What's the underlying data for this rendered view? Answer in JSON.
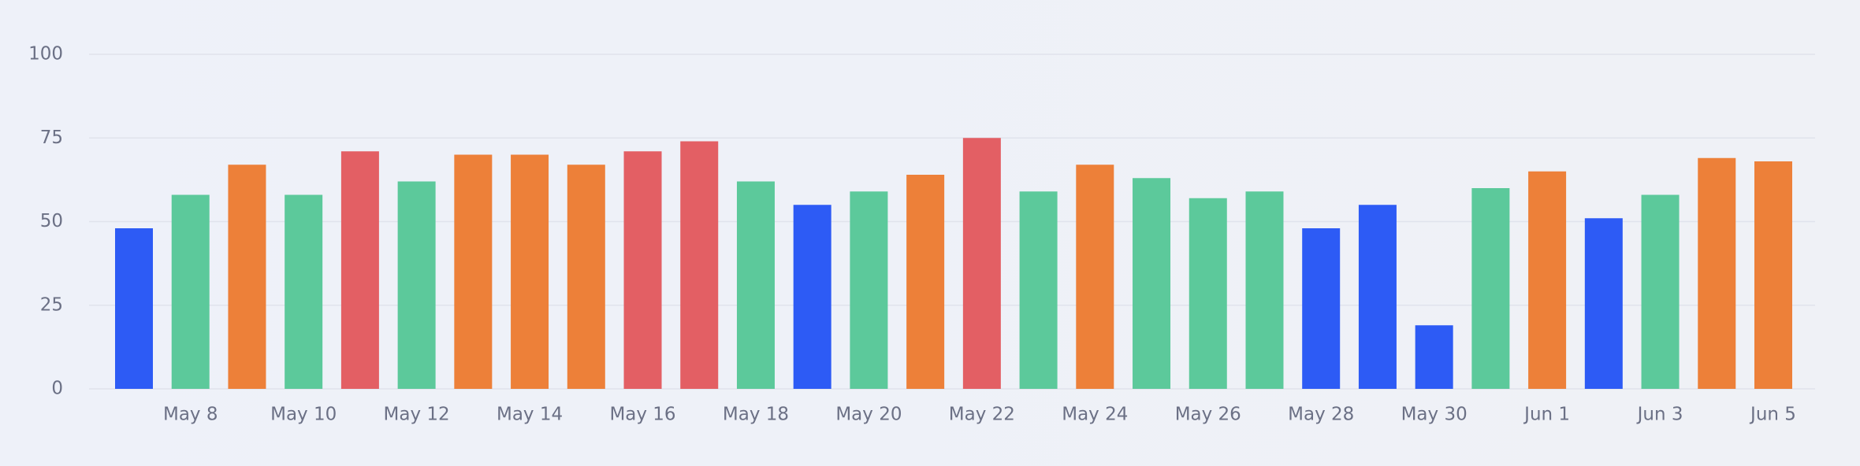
{
  "chart_data": {
    "type": "bar",
    "categories": [
      null,
      "May 8",
      null,
      "May 10",
      null,
      "May 12",
      null,
      "May 14",
      null,
      "May 16",
      null,
      "May 18",
      null,
      "May 20",
      null,
      "May 22",
      null,
      "May 24",
      null,
      "May 26",
      null,
      "May 28",
      null,
      "May 30",
      null,
      "Jun 1",
      null,
      "Jun 3",
      null,
      "Jun 5"
    ],
    "values": [
      48,
      58,
      67,
      58,
      71,
      62,
      70,
      70,
      67,
      71,
      74,
      62,
      55,
      59,
      64,
      75,
      59,
      67,
      63,
      57,
      59,
      48,
      55,
      19,
      60,
      65,
      51,
      58,
      69,
      68
    ],
    "colors": [
      "#2d5bf5",
      "#5cc99b",
      "#ed8039",
      "#5cc99b",
      "#e35f64",
      "#5cc99b",
      "#ed8039",
      "#ed8039",
      "#ed8039",
      "#e35f64",
      "#e35f64",
      "#5cc99b",
      "#2d5bf5",
      "#5cc99b",
      "#ed8039",
      "#e35f64",
      "#5cc99b",
      "#ed8039",
      "#5cc99b",
      "#5cc99b",
      "#5cc99b",
      "#2d5bf5",
      "#2d5bf5",
      "#2d5bf5",
      "#5cc99b",
      "#ed8039",
      "#2d5bf5",
      "#5cc99b",
      "#ed8039",
      "#ed8039"
    ],
    "ylim": [
      0,
      100
    ],
    "yticks": [
      0,
      25,
      50,
      75,
      100
    ],
    "grid": true
  }
}
